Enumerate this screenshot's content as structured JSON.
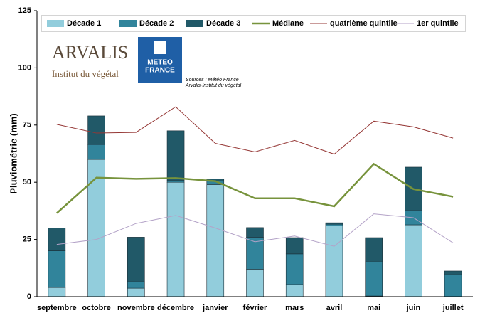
{
  "chart_data": {
    "type": "stacked_bar_line",
    "y_label": "Pluviométrie (mm)",
    "categories": [
      "septembre",
      "octobre",
      "novembre",
      "décembre",
      "janvier",
      "février",
      "mars",
      "avril",
      "mai",
      "juin",
      "juillet"
    ],
    "series": [
      {
        "name": "Décade 1",
        "color": "#92cddc",
        "kind": "bar",
        "values": [
          4,
          60,
          3.7,
          50,
          49,
          12,
          5.3,
          31,
          0.3,
          31.4,
          0
        ]
      },
      {
        "name": "Décade 2",
        "color": "#31849b",
        "kind": "bar",
        "values": [
          16,
          6.5,
          2.8,
          0.7,
          1.5,
          14,
          13.4,
          0.7,
          14.9,
          6.2,
          9.6
        ]
      },
      {
        "name": "Décade 3",
        "color": "#215968",
        "kind": "bar",
        "values": [
          10,
          12.5,
          19.5,
          21.8,
          1,
          4.2,
          7.1,
          0.6,
          10.6,
          19,
          1.6
        ]
      },
      {
        "name": "Médiane",
        "color": "#77933c",
        "kind": "line",
        "width": 2.5,
        "values": [
          36.5,
          52,
          51.5,
          51.8,
          50.5,
          43,
          43,
          39.5,
          58,
          47,
          43.7
        ]
      },
      {
        "name": "quatrième quintile",
        "color": "#953735",
        "kind": "line",
        "width": 1,
        "values": [
          75.3,
          71.5,
          71.8,
          83,
          67,
          63.3,
          68.3,
          62.3,
          76.7,
          74.2,
          69.3
        ]
      },
      {
        "name": "1er quintile",
        "color": "#b3a2c7",
        "kind": "line",
        "width": 1,
        "values": [
          22.8,
          25,
          32,
          35.5,
          30,
          24,
          26.5,
          22,
          36.2,
          34.5,
          23.5
        ]
      }
    ],
    "annotations": [
      "ARVALIS",
      "Institut du végétal",
      "METEO",
      "FRANCE",
      "Sources : Météo France",
      "Arvalis-Institut du végétal"
    ],
    "ylim": [
      0,
      125
    ],
    "yticks": [
      0,
      25,
      50,
      75,
      100,
      125
    ],
    "grid": false
  }
}
